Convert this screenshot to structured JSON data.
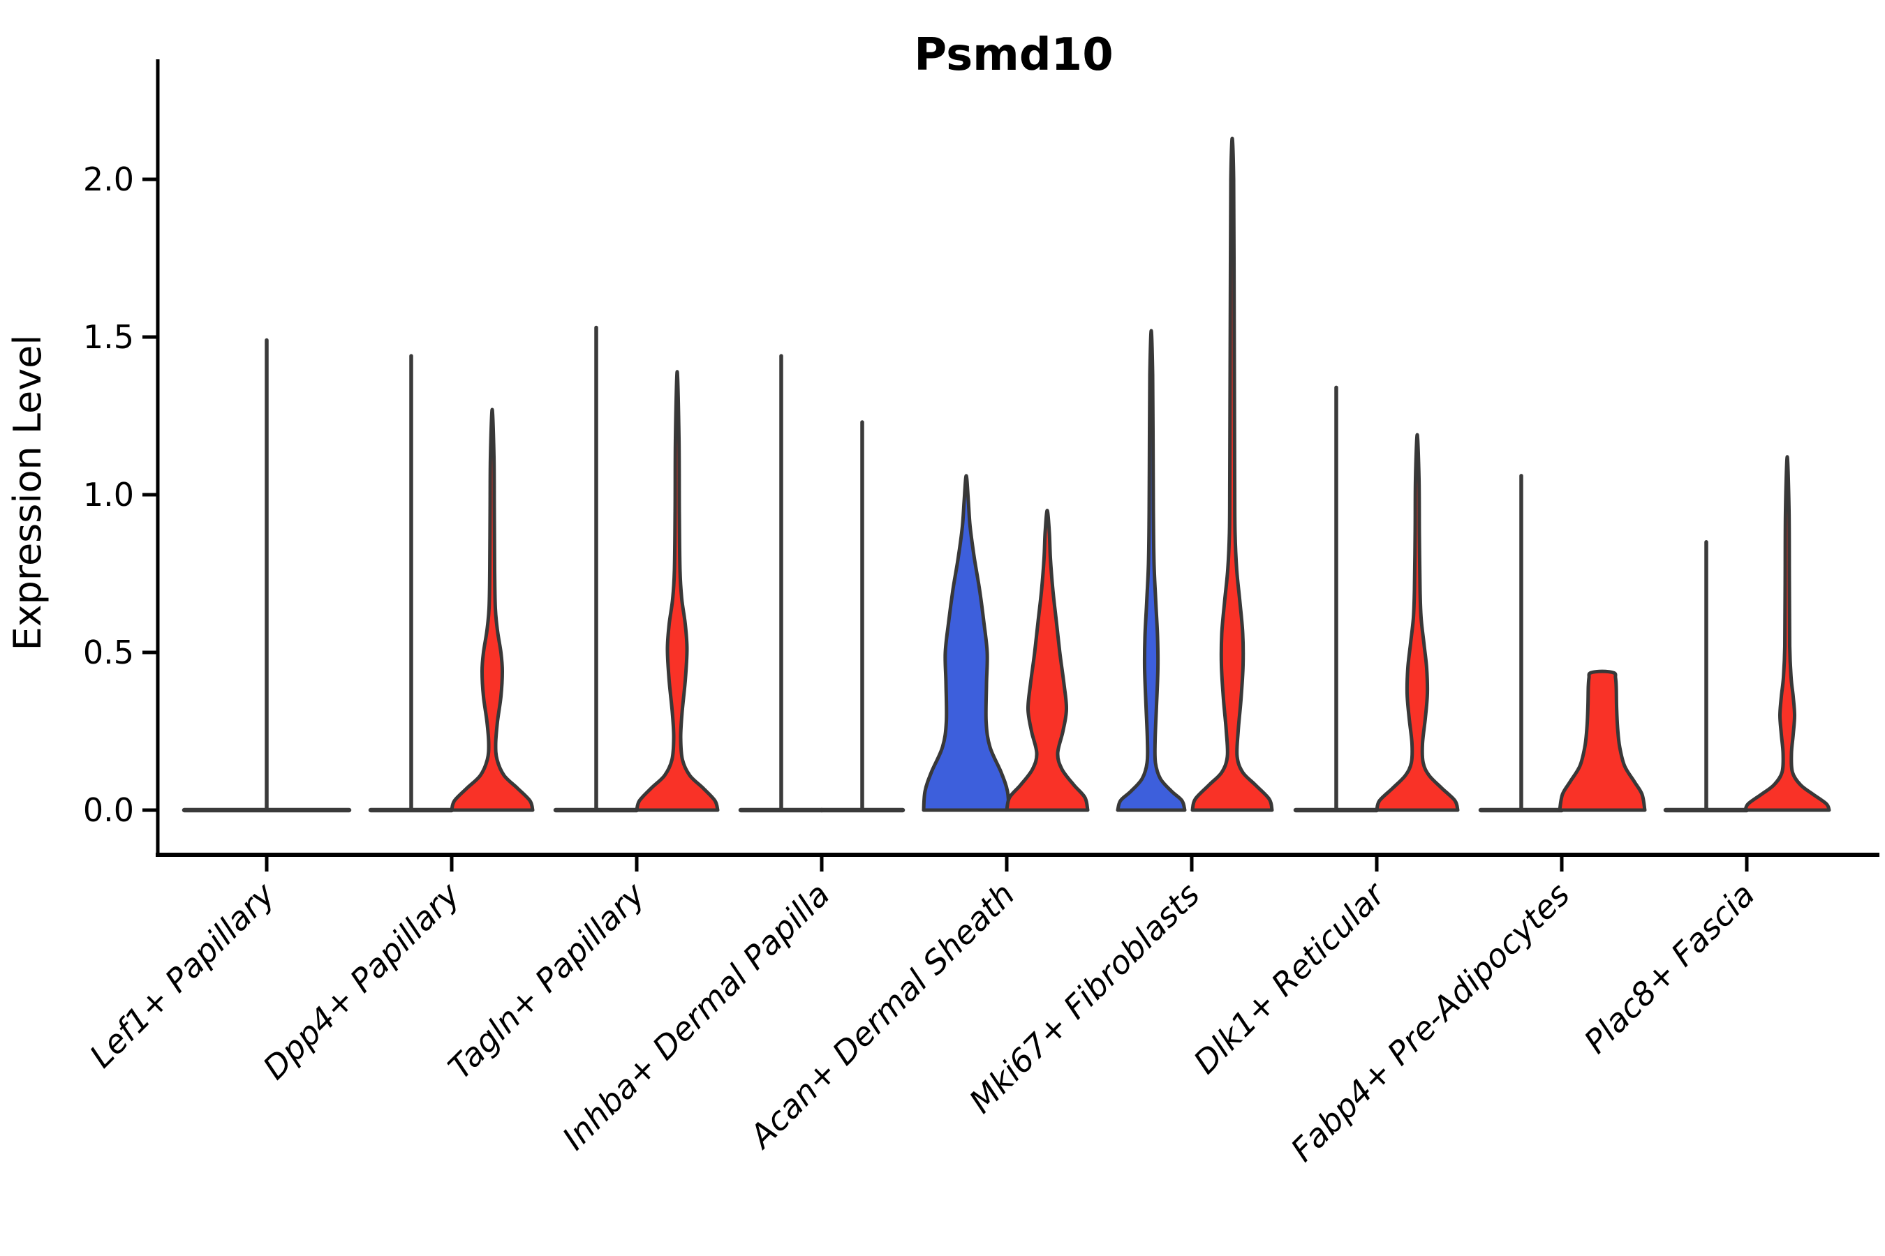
{
  "title": "Psmd10",
  "y_axis": {
    "label": "Expression Level",
    "ticks": [
      0.0,
      0.5,
      1.0,
      1.5,
      2.0
    ],
    "range": [
      0,
      2.25
    ]
  },
  "x_axis": {
    "categories": [
      "Lef1+ Papillary",
      "Dpp4+ Papillary",
      "Tagln+ Papillary",
      "Inhba+ Dermal Papilla",
      "Acan+ Dermal Sheath",
      "Mki67+ Fibroblasts",
      "Dlk1+ Reticular",
      "Fabp4+ Pre-Adipocytes",
      "Plac8+ Fascia"
    ]
  },
  "colors": {
    "blue": "#3D5FDC",
    "red": "#F93227",
    "outline": "#383838",
    "flat_line": "#3A3A3A",
    "axis": "#000000"
  },
  "chart_data": {
    "type": "violin",
    "title": "Psmd10",
    "xlabel": "",
    "ylabel": "Expression Level",
    "ylim": [
      0,
      2.25
    ],
    "legend_position": "none",
    "grid": false,
    "categories": [
      "Lef1+ Papillary",
      "Dpp4+ Papillary",
      "Tagln+ Papillary",
      "Inhba+ Dermal Papilla",
      "Acan+ Dermal Sheath",
      "Mki67+ Fibroblasts",
      "Dlk1+ Reticular",
      "Fabp4+ Pre-Adipocytes",
      "Plac8+ Fascia"
    ],
    "groups": [
      {
        "category": "Lef1+ Papillary",
        "violins": [
          {
            "position": "center",
            "color": "none",
            "style": "flat",
            "max": 1.49
          }
        ]
      },
      {
        "category": "Dpp4+ Papillary",
        "violins": [
          {
            "position": "left",
            "color": "none",
            "style": "flat",
            "max": 1.44
          },
          {
            "position": "right",
            "color": "red",
            "style": "density",
            "max": 1.27,
            "profile": [
              [
                0,
                116
              ],
              [
                0.03,
                108
              ],
              [
                0.07,
                72
              ],
              [
                0.11,
                34
              ],
              [
                0.16,
                14
              ],
              [
                0.21,
                10
              ],
              [
                0.28,
                15
              ],
              [
                0.36,
                25
              ],
              [
                0.44,
                29
              ],
              [
                0.5,
                25
              ],
              [
                0.57,
                15
              ],
              [
                0.64,
                9
              ],
              [
                0.76,
                7
              ],
              [
                0.95,
                6
              ],
              [
                1.12,
                5
              ],
              [
                1.27,
                0
              ]
            ]
          }
        ]
      },
      {
        "category": "Tagln+ Papillary",
        "violins": [
          {
            "position": "left",
            "color": "none",
            "style": "flat",
            "max": 1.53
          },
          {
            "position": "right",
            "color": "red",
            "style": "density",
            "max": 1.39,
            "profile": [
              [
                0,
                116
              ],
              [
                0.03,
                108
              ],
              [
                0.07,
                74
              ],
              [
                0.11,
                36
              ],
              [
                0.16,
                15
              ],
              [
                0.23,
                10
              ],
              [
                0.31,
                14
              ],
              [
                0.41,
                23
              ],
              [
                0.51,
                28
              ],
              [
                0.59,
                23
              ],
              [
                0.67,
                13
              ],
              [
                0.76,
                8
              ],
              [
                0.95,
                6
              ],
              [
                1.18,
                5
              ],
              [
                1.39,
                0
              ]
            ]
          }
        ]
      },
      {
        "category": "Inhba+ Dermal Papilla",
        "violins": [
          {
            "position": "left",
            "color": "none",
            "style": "flat",
            "max": 1.44
          },
          {
            "position": "right",
            "color": "none",
            "style": "flat",
            "max": 1.23
          }
        ]
      },
      {
        "category": "Acan+ Dermal Sheath",
        "violins": [
          {
            "position": "left",
            "color": "blue",
            "style": "density",
            "max": 1.06,
            "profile": [
              [
                0,
                122
              ],
              [
                0.06,
                118
              ],
              [
                0.12,
                100
              ],
              [
                0.2,
                68
              ],
              [
                0.28,
                57
              ],
              [
                0.4,
                58
              ],
              [
                0.5,
                60
              ],
              [
                0.6,
                50
              ],
              [
                0.7,
                38
              ],
              [
                0.8,
                23
              ],
              [
                0.9,
                11
              ],
              [
                0.98,
                6
              ],
              [
                1.06,
                0
              ]
            ]
          },
          {
            "position": "right",
            "color": "red",
            "style": "density",
            "max": 0.95,
            "profile": [
              [
                0,
                116
              ],
              [
                0.04,
                108
              ],
              [
                0.08,
                76
              ],
              [
                0.13,
                42
              ],
              [
                0.18,
                30
              ],
              [
                0.25,
                45
              ],
              [
                0.32,
                55
              ],
              [
                0.4,
                48
              ],
              [
                0.5,
                36
              ],
              [
                0.6,
                26
              ],
              [
                0.7,
                16
              ],
              [
                0.8,
                9
              ],
              [
                0.88,
                6
              ],
              [
                0.95,
                0
              ]
            ]
          }
        ]
      },
      {
        "category": "Mki67+ Fibroblasts",
        "violins": [
          {
            "position": "left",
            "color": "blue",
            "style": "density",
            "max": 1.52,
            "profile": [
              [
                0,
                96
              ],
              [
                0.03,
                88
              ],
              [
                0.06,
                58
              ],
              [
                0.1,
                26
              ],
              [
                0.15,
                12
              ],
              [
                0.22,
                11
              ],
              [
                0.33,
                15
              ],
              [
                0.45,
                19
              ],
              [
                0.55,
                18
              ],
              [
                0.66,
                13
              ],
              [
                0.78,
                8
              ],
              [
                0.95,
                6
              ],
              [
                1.2,
                5
              ],
              [
                1.38,
                4
              ],
              [
                1.52,
                0
              ]
            ]
          },
          {
            "position": "right",
            "color": "red",
            "style": "density",
            "max": 2.13,
            "profile": [
              [
                0,
                114
              ],
              [
                0.035,
                106
              ],
              [
                0.08,
                66
              ],
              [
                0.12,
                30
              ],
              [
                0.17,
                14
              ],
              [
                0.25,
                17
              ],
              [
                0.35,
                25
              ],
              [
                0.46,
                31
              ],
              [
                0.56,
                30
              ],
              [
                0.66,
                22
              ],
              [
                0.76,
                13
              ],
              [
                0.88,
                8
              ],
              [
                1.05,
                7
              ],
              [
                1.4,
                6
              ],
              [
                1.75,
                5
              ],
              [
                2.0,
                4
              ],
              [
                2.13,
                0
              ]
            ]
          }
        ]
      },
      {
        "category": "Dlk1+ Reticular",
        "violins": [
          {
            "position": "left",
            "color": "none",
            "style": "flat",
            "max": 1.34
          },
          {
            "position": "right",
            "color": "red",
            "style": "density",
            "max": 1.19,
            "profile": [
              [
                0,
                116
              ],
              [
                0.03,
                108
              ],
              [
                0.07,
                70
              ],
              [
                0.11,
                34
              ],
              [
                0.15,
                17
              ],
              [
                0.21,
                15
              ],
              [
                0.29,
                23
              ],
              [
                0.37,
                29
              ],
              [
                0.45,
                27
              ],
              [
                0.53,
                19
              ],
              [
                0.61,
                11
              ],
              [
                0.7,
                8
              ],
              [
                0.88,
                6
              ],
              [
                1.05,
                5
              ],
              [
                1.19,
                0
              ]
            ]
          }
        ]
      },
      {
        "category": "Fabp4+ Pre-Adipocytes",
        "violins": [
          {
            "position": "left",
            "color": "none",
            "style": "flat",
            "max": 1.06
          },
          {
            "position": "right",
            "color": "red",
            "style": "density",
            "max": 0.44,
            "profile": [
              [
                0,
                122
              ],
              [
                0.05,
                114
              ],
              [
                0.09,
                92
              ],
              [
                0.14,
                64
              ],
              [
                0.2,
                50
              ],
              [
                0.26,
                44
              ],
              [
                0.33,
                41
              ],
              [
                0.39,
                40
              ],
              [
                0.42,
                38
              ],
              [
                0.435,
                34
              ],
              [
                0.44,
                0
              ]
            ]
          }
        ]
      },
      {
        "category": "Plac8+ Fascia",
        "violins": [
          {
            "position": "left",
            "color": "none",
            "style": "flat",
            "max": 0.85
          },
          {
            "position": "right",
            "color": "red",
            "style": "density",
            "max": 1.12,
            "profile": [
              [
                0,
                120
              ],
              [
                0.02,
                112
              ],
              [
                0.05,
                74
              ],
              [
                0.08,
                38
              ],
              [
                0.12,
                15
              ],
              [
                0.18,
                12
              ],
              [
                0.24,
                17
              ],
              [
                0.3,
                21
              ],
              [
                0.36,
                17
              ],
              [
                0.42,
                11
              ],
              [
                0.52,
                7
              ],
              [
                0.72,
                6
              ],
              [
                0.95,
                5
              ],
              [
                1.12,
                0
              ]
            ]
          }
        ]
      }
    ]
  }
}
